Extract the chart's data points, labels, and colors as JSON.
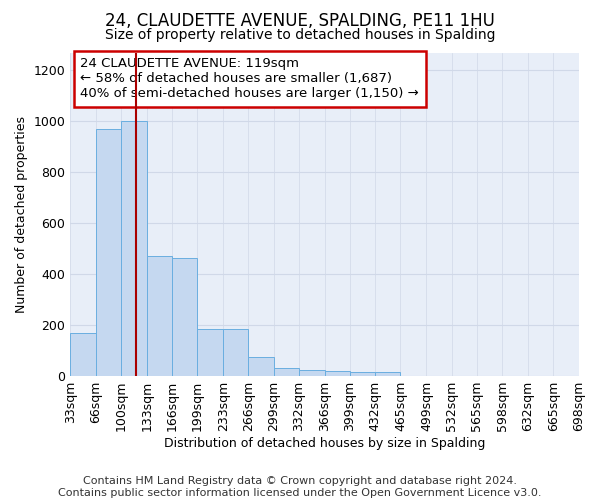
{
  "title": "24, CLAUDETTE AVENUE, SPALDING, PE11 1HU",
  "subtitle": "Size of property relative to detached houses in Spalding",
  "xlabel": "Distribution of detached houses by size in Spalding",
  "ylabel": "Number of detached properties",
  "footer_line1": "Contains HM Land Registry data © Crown copyright and database right 2024.",
  "footer_line2": "Contains public sector information licensed under the Open Government Licence v3.0.",
  "annotation_line1": "24 CLAUDETTE AVENUE: 119sqm",
  "annotation_line2": "← 58% of detached houses are smaller (1,687)",
  "annotation_line3": "40% of semi-detached houses are larger (1,150) →",
  "property_size": 119,
  "bar_lefts": [
    33,
    66,
    100,
    133,
    166,
    199,
    233,
    266,
    299,
    332,
    366,
    399,
    432,
    465,
    499,
    532,
    565,
    598,
    632,
    665
  ],
  "bar_rights": [
    66,
    100,
    133,
    166,
    199,
    233,
    266,
    299,
    332,
    366,
    399,
    432,
    465,
    499,
    532,
    565,
    598,
    632,
    665,
    698
  ],
  "bar_heights": [
    170,
    970,
    1000,
    470,
    465,
    185,
    185,
    75,
    30,
    25,
    20,
    15,
    15,
    0,
    0,
    0,
    0,
    0,
    0,
    0
  ],
  "bar_color": "#c5d8f0",
  "bar_edgecolor": "#6aaee0",
  "vline_color": "#aa0000",
  "annotation_box_edgecolor": "#cc0000",
  "annotation_box_facecolor": "#ffffff",
  "grid_color": "#d0d8e8",
  "background_color": "#e8eef8",
  "ylim": [
    0,
    1270
  ],
  "yticks": [
    0,
    200,
    400,
    600,
    800,
    1000,
    1200
  ],
  "tick_fontsize": 9,
  "annotation_fontsize": 9.5,
  "footer_fontsize": 8
}
